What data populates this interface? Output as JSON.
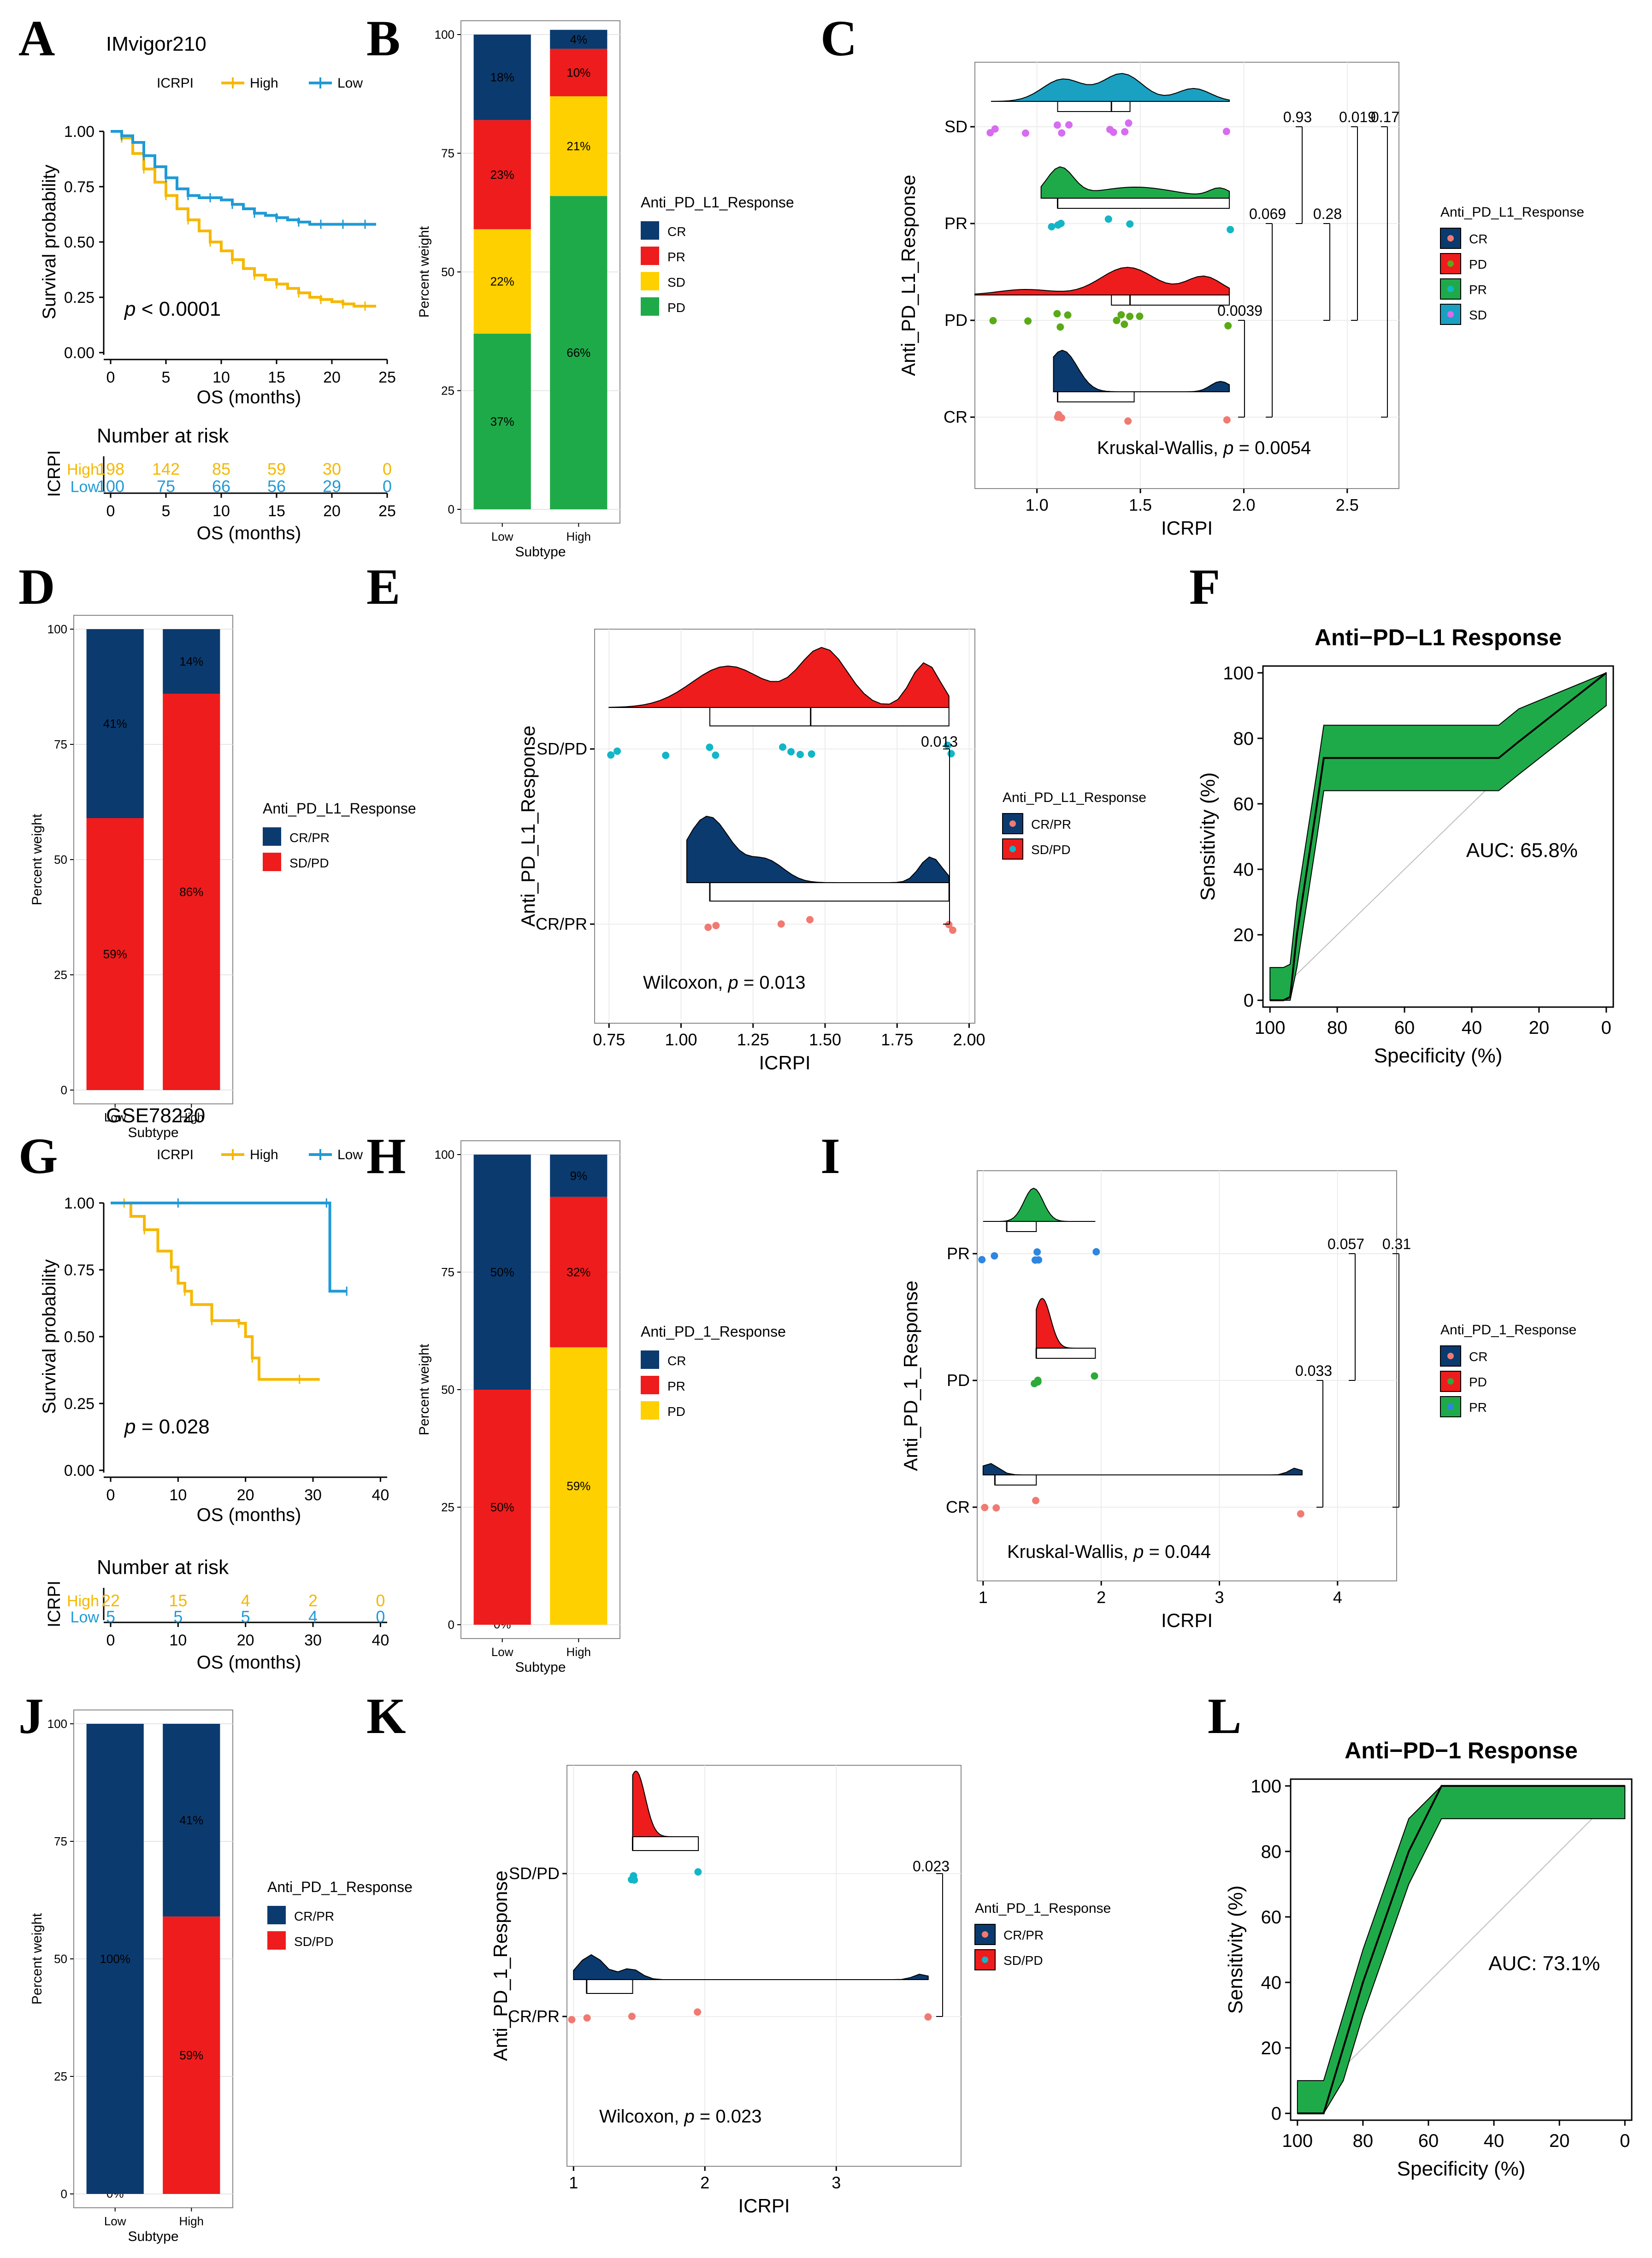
{
  "colors": {
    "high": "#F5B800",
    "low": "#1F9AD6",
    "cr": "#0B3A6E",
    "pr": "#EE1C1C",
    "sd": "#FFD000",
    "pd": "#1FAA4A",
    "green": "#1FAA4A",
    "red": "#EE1C1C",
    "navy": "#0B3A6E",
    "teal": "#1AA0C0",
    "ptcyan": "#12B6C6",
    "ptsalmon": "#F07A72",
    "ptviolet": "#D76CF0",
    "ptgreen": "#5AAA18",
    "ptblue": "#2E86E0",
    "ptgreen2": "#2DAA3A"
  },
  "panels": {
    "A": "A",
    "B": "B",
    "C": "C",
    "D": "D",
    "E": "E",
    "F": "F",
    "G": "G",
    "H": "H",
    "I": "I",
    "J": "J",
    "K": "K",
    "L": "L"
  },
  "chart_data": [
    {
      "id": "A",
      "type": "line",
      "kind": "km",
      "title": "IMvigor210",
      "legend_title": "ICRPI",
      "series": [
        {
          "name": "High",
          "points": [
            [
              0,
              1
            ],
            [
              1,
              0.97
            ],
            [
              2,
              0.9
            ],
            [
              3,
              0.83
            ],
            [
              4,
              0.77
            ],
            [
              5,
              0.71
            ],
            [
              6,
              0.65
            ],
            [
              7,
              0.6
            ],
            [
              8,
              0.55
            ],
            [
              9,
              0.5
            ],
            [
              10,
              0.46
            ],
            [
              11,
              0.42
            ],
            [
              12,
              0.38
            ],
            [
              13,
              0.35
            ],
            [
              14,
              0.33
            ],
            [
              15,
              0.31
            ],
            [
              16,
              0.29
            ],
            [
              17,
              0.27
            ],
            [
              18,
              0.25
            ],
            [
              19,
              0.24
            ],
            [
              20,
              0.23
            ],
            [
              21,
              0.22
            ],
            [
              22,
              0.21
            ],
            [
              23,
              0.21
            ],
            [
              24,
              0.21
            ]
          ]
        },
        {
          "name": "Low",
          "points": [
            [
              0,
              1
            ],
            [
              1,
              0.98
            ],
            [
              2,
              0.95
            ],
            [
              3,
              0.89
            ],
            [
              4,
              0.84
            ],
            [
              5,
              0.79
            ],
            [
              6,
              0.74
            ],
            [
              7,
              0.71
            ],
            [
              8,
              0.7
            ],
            [
              9,
              0.7
            ],
            [
              10,
              0.69
            ],
            [
              11,
              0.67
            ],
            [
              12,
              0.65
            ],
            [
              13,
              0.63
            ],
            [
              14,
              0.62
            ],
            [
              15,
              0.61
            ],
            [
              16,
              0.6
            ],
            [
              17,
              0.59
            ],
            [
              18,
              0.58
            ],
            [
              19,
              0.58
            ],
            [
              20,
              0.58
            ],
            [
              21,
              0.58
            ],
            [
              22,
              0.58
            ],
            [
              23,
              0.58
            ],
            [
              24,
              0.58
            ]
          ]
        }
      ],
      "xlabel": "OS (months)",
      "ylabel": "Survival probability",
      "xticks": [
        "0",
        "5",
        "10",
        "15",
        "20",
        "25"
      ],
      "yticks": [
        "0.00",
        "0.25",
        "0.50",
        "0.75",
        "1.00"
      ],
      "xlim": [
        0,
        25
      ],
      "ylim": [
        0,
        1
      ],
      "pvalue_p": "p",
      "pvalue_rest": " < 0.0001",
      "risk": {
        "title": "Number at risk",
        "ylabel": "ICRPI",
        "groups": [
          "High",
          "Low"
        ],
        "values": [
          [
            "198",
            "142",
            "85",
            "59",
            "30",
            "0"
          ],
          [
            "100",
            "75",
            "66",
            "56",
            "29",
            "0"
          ]
        ]
      }
    },
    {
      "id": "B",
      "type": "bar",
      "kind": "stack",
      "categories": [
        "Low",
        "High"
      ],
      "xlabel": "Subtype",
      "ylabel": "Percent weight",
      "yticks": [
        "0",
        "25",
        "50",
        "75",
        "100"
      ],
      "legend_title": "Anti_PD_L1_Response",
      "legend": [
        "CR",
        "PR",
        "SD",
        "PD"
      ],
      "segments": [
        [
          {
            "key": "pd",
            "value": 37,
            "label": "37%"
          },
          {
            "key": "sd",
            "value": 22,
            "label": "22%"
          },
          {
            "key": "pr",
            "value": 23,
            "label": "23%"
          },
          {
            "key": "cr",
            "value": 18,
            "label": "18%"
          }
        ],
        [
          {
            "key": "pd",
            "value": 66,
            "label": "66%"
          },
          {
            "key": "sd",
            "value": 21,
            "label": "21%"
          },
          {
            "key": "pr",
            "value": 10,
            "label": "10%"
          },
          {
            "key": "cr",
            "value": 4,
            "label": "4%"
          }
        ]
      ]
    },
    {
      "id": "C",
      "type": "scatter",
      "kind": "rain",
      "groups": [
        "SD",
        "PR",
        "PD",
        "CR"
      ],
      "xlabel": "ICRPI",
      "ylabel": "Anti_PD_L1_Response",
      "xticks": [
        "1.0",
        "1.5",
        "2.0",
        "2.5"
      ],
      "xlim": [
        0.7,
        2.75
      ],
      "legend_title": "Anti_PD_L1_Response",
      "legend": [
        "CR",
        "PD",
        "PR",
        "SD"
      ],
      "stat_prefix": "Kruskal-Wallis, ",
      "stat_p": "p",
      "stat_rest": " = 0.0054",
      "comparisons": [
        "0.93",
        "0.019",
        "0.17",
        "0.069",
        "0.28",
        "0.0039"
      ]
    },
    {
      "id": "D",
      "type": "bar",
      "kind": "stack",
      "categories": [
        "Low",
        "High"
      ],
      "xlabel": "Subtype",
      "ylabel": "Percent weight",
      "yticks": [
        "0",
        "25",
        "50",
        "75",
        "100"
      ],
      "legend_title": "Anti_PD_L1_Response",
      "legend": [
        "CR/PR",
        "SD/PD"
      ],
      "segments": [
        [
          {
            "key": "red",
            "value": 59,
            "label": "59%"
          },
          {
            "key": "navy",
            "value": 41,
            "label": "41%"
          }
        ],
        [
          {
            "key": "red",
            "value": 86,
            "label": "86%"
          },
          {
            "key": "navy",
            "value": 14,
            "label": "14%"
          }
        ]
      ]
    },
    {
      "id": "E",
      "type": "scatter",
      "kind": "rain",
      "groups": [
        "SD/PD",
        "CR/PR"
      ],
      "xlabel": "ICRPI",
      "ylabel": "Anti_PD_L1_Response",
      "xticks": [
        "0.75",
        "1.00",
        "1.25",
        "1.50",
        "1.75",
        "2.00"
      ],
      "xlim": [
        0.7,
        2.02
      ],
      "legend_title": "Anti_PD_L1_Response",
      "legend": [
        "CR/PR",
        "SD/PD"
      ],
      "stat_prefix": "Wilcoxon, ",
      "stat_p": "p",
      "stat_rest": " = 0.013",
      "comparisons": [
        "0.013"
      ]
    },
    {
      "id": "F",
      "type": "line",
      "kind": "roc",
      "title": "Anti−PD−L1 Response",
      "xlabel": "Specificity (%)",
      "ylabel": "Sensitivity (%)",
      "xticks": [
        "100",
        "80",
        "60",
        "40",
        "20",
        "0"
      ],
      "yticks": [
        "0",
        "20",
        "40",
        "60",
        "80",
        "100"
      ],
      "auc": "AUC: 65.8%",
      "curve": [
        [
          100,
          0
        ],
        [
          96,
          0
        ],
        [
          94,
          1
        ],
        [
          92,
          20
        ],
        [
          89,
          40
        ],
        [
          86,
          60
        ],
        [
          84,
          74
        ],
        [
          78,
          74
        ],
        [
          76,
          74
        ],
        [
          70,
          74
        ],
        [
          32,
          74
        ],
        [
          26,
          79
        ],
        [
          0,
          100
        ]
      ]
    },
    {
      "id": "G",
      "type": "line",
      "kind": "km",
      "title": "GSE78220",
      "legend_title": "ICRPI",
      "series": [
        {
          "name": "High",
          "points": [
            [
              0,
              1
            ],
            [
              2,
              1
            ],
            [
              3,
              0.95
            ],
            [
              5,
              0.9
            ],
            [
              7,
              0.82
            ],
            [
              9,
              0.76
            ],
            [
              10,
              0.7
            ],
            [
              11,
              0.67
            ],
            [
              12,
              0.62
            ],
            [
              15,
              0.56
            ],
            [
              17,
              0.56
            ],
            [
              19,
              0.55
            ],
            [
              20,
              0.5
            ],
            [
              21,
              0.42
            ],
            [
              22,
              0.34
            ],
            [
              28,
              0.34
            ],
            [
              31,
              0.34
            ]
          ]
        },
        {
          "name": "Low",
          "points": [
            [
              0,
              1
            ],
            [
              10,
              1
            ],
            [
              20,
              1
            ],
            [
              32,
              1
            ],
            [
              32.5,
              0.67
            ],
            [
              35,
              0.67
            ]
          ]
        }
      ],
      "xlabel": "OS (months)",
      "ylabel": "Survival probability",
      "xticks": [
        "0",
        "10",
        "20",
        "30",
        "40"
      ],
      "yticks": [
        "0.00",
        "0.25",
        "0.50",
        "0.75",
        "1.00"
      ],
      "xlim": [
        0,
        41
      ],
      "ylim": [
        0,
        1
      ],
      "pvalue_p": "p",
      "pvalue_rest": " = 0.028",
      "risk": {
        "title": "Number at risk",
        "ylabel": "ICRPI",
        "groups": [
          "High",
          "Low"
        ],
        "values": [
          [
            "22",
            "15",
            "4",
            "2",
            "0"
          ],
          [
            "5",
            "5",
            "5",
            "4",
            "0"
          ]
        ]
      }
    },
    {
      "id": "H",
      "type": "bar",
      "kind": "stack",
      "categories": [
        "Low",
        "High"
      ],
      "xlabel": "Subtype",
      "ylabel": "Percent weight",
      "yticks": [
        "0",
        "25",
        "50",
        "75",
        "100"
      ],
      "legend_title": "Anti_PD_1_Response",
      "legend": [
        "CR",
        "PR",
        "PD"
      ],
      "segments": [
        [
          {
            "key": "sd",
            "value": 0,
            "label": "0%"
          },
          {
            "key": "pr",
            "value": 50,
            "label": "50%"
          },
          {
            "key": "cr",
            "value": 50,
            "label": "50%"
          }
        ],
        [
          {
            "key": "sd",
            "value": 59,
            "label": "59%"
          },
          {
            "key": "pr",
            "value": 32,
            "label": "32%"
          },
          {
            "key": "cr",
            "value": 9,
            "label": "9%"
          }
        ]
      ]
    },
    {
      "id": "I",
      "type": "scatter",
      "kind": "rain",
      "groups": [
        "PR",
        "PD",
        "CR"
      ],
      "xlabel": "ICRPI",
      "ylabel": "Anti_PD_1_Response",
      "xticks": [
        "1",
        "2",
        "3",
        "4"
      ],
      "xlim": [
        0.95,
        4.5
      ],
      "legend_title": "Anti_PD_1_Response",
      "legend": [
        "CR",
        "PD",
        "PR"
      ],
      "stat_prefix": "Kruskal-Wallis, ",
      "stat_p": "p",
      "stat_rest": " = 0.044",
      "comparisons": [
        "0.057",
        "0.31",
        "0.033"
      ]
    },
    {
      "id": "J",
      "type": "bar",
      "kind": "stack",
      "categories": [
        "Low",
        "High"
      ],
      "xlabel": "Subtype",
      "ylabel": "Percent weight",
      "yticks": [
        "0",
        "25",
        "50",
        "75",
        "100"
      ],
      "legend_title": "Anti_PD_1_Response",
      "legend": [
        "CR/PR",
        "SD/PD"
      ],
      "segments": [
        [
          {
            "key": "red",
            "value": 0,
            "label": "0%"
          },
          {
            "key": "navy",
            "value": 100,
            "label": "100%"
          }
        ],
        [
          {
            "key": "red",
            "value": 59,
            "label": "59%"
          },
          {
            "key": "navy",
            "value": 41,
            "label": "41%"
          }
        ]
      ]
    },
    {
      "id": "K",
      "type": "scatter",
      "kind": "rain",
      "groups": [
        "SD/PD",
        "CR/PR"
      ],
      "xlabel": "ICRPI",
      "ylabel": "Anti_PD_1_Response",
      "xticks": [
        "1",
        "2",
        "3"
      ],
      "xlim": [
        0.95,
        3.95
      ],
      "legend_title": "Anti_PD_1_Response",
      "legend": [
        "CR/PR",
        "SD/PD"
      ],
      "stat_prefix": "Wilcoxon, ",
      "stat_p": "p",
      "stat_rest": " = 0.023",
      "comparisons": [
        "0.023"
      ]
    },
    {
      "id": "L",
      "type": "line",
      "kind": "roc",
      "title": "Anti−PD−1 Response",
      "xlabel": "Specificity (%)",
      "ylabel": "Sensitivity (%)",
      "xticks": [
        "100",
        "80",
        "60",
        "40",
        "20",
        "0"
      ],
      "yticks": [
        "0",
        "20",
        "40",
        "60",
        "80",
        "100"
      ],
      "auc": "AUC: 73.1%",
      "curve": [
        [
          100,
          0
        ],
        [
          92,
          0
        ],
        [
          86,
          20
        ],
        [
          80,
          40
        ],
        [
          73,
          60
        ],
        [
          66,
          80
        ],
        [
          56,
          100
        ],
        [
          35,
          100
        ],
        [
          0,
          100
        ]
      ]
    }
  ]
}
